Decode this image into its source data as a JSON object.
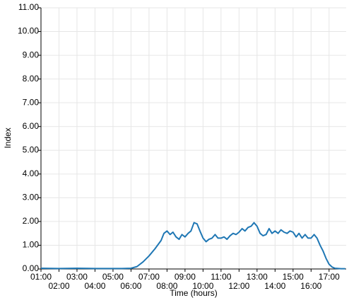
{
  "chart_data": {
    "type": "line",
    "xlabel": "Time (hours)",
    "ylabel": "Index",
    "xlim": [
      1,
      17.95
    ],
    "ylim": [
      0,
      11
    ],
    "xticks": [
      {
        "value": 1,
        "label": "01:00"
      },
      {
        "value": 2,
        "label": "02:00"
      },
      {
        "value": 3,
        "label": "03:00"
      },
      {
        "value": 4,
        "label": "04:00"
      },
      {
        "value": 5,
        "label": "05:00"
      },
      {
        "value": 6,
        "label": "06:00"
      },
      {
        "value": 7,
        "label": "07:00"
      },
      {
        "value": 8,
        "label": "08:00"
      },
      {
        "value": 9,
        "label": "09:00"
      },
      {
        "value": 10,
        "label": "10:00"
      },
      {
        "value": 11,
        "label": "11:00"
      },
      {
        "value": 12,
        "label": "12:00"
      },
      {
        "value": 13,
        "label": "13:00"
      },
      {
        "value": 14,
        "label": "14:00"
      },
      {
        "value": 15,
        "label": "15:00"
      },
      {
        "value": 16,
        "label": "16:00"
      },
      {
        "value": 17,
        "label": "17:00"
      }
    ],
    "yticks": [
      {
        "value": 0,
        "label": "0.00"
      },
      {
        "value": 1,
        "label": "1.00"
      },
      {
        "value": 2,
        "label": "2.00"
      },
      {
        "value": 3,
        "label": "3.00"
      },
      {
        "value": 4,
        "label": "4.00"
      },
      {
        "value": 5,
        "label": "5.00"
      },
      {
        "value": 6,
        "label": "6.00"
      },
      {
        "value": 7,
        "label": "7.00"
      },
      {
        "value": 8,
        "label": "8.00"
      },
      {
        "value": 9,
        "label": "9.00"
      },
      {
        "value": 10,
        "label": "10.00"
      },
      {
        "value": 11,
        "label": "11.00"
      }
    ],
    "grid": true,
    "x": [
      1,
      2,
      3,
      4,
      5,
      5.5,
      6,
      6.33,
      6.67,
      7,
      7.33,
      7.67,
      7.83,
      8,
      8.17,
      8.33,
      8.5,
      8.67,
      8.83,
      9,
      9.17,
      9.33,
      9.5,
      9.67,
      9.83,
      10,
      10.17,
      10.33,
      10.5,
      10.67,
      10.83,
      11,
      11.17,
      11.33,
      11.5,
      11.67,
      11.83,
      12,
      12.17,
      12.33,
      12.5,
      12.67,
      12.83,
      13,
      13.17,
      13.33,
      13.5,
      13.67,
      13.83,
      14,
      14.17,
      14.33,
      14.5,
      14.67,
      14.83,
      15,
      15.17,
      15.33,
      15.5,
      15.67,
      15.83,
      16,
      16.17,
      16.33,
      16.5,
      16.67,
      16.83,
      17,
      17.17,
      17.33,
      17.67,
      17.9
    ],
    "series": [
      {
        "name": "Index",
        "color": "#1f77b4",
        "values": [
          0.03,
          0.02,
          0.03,
          0.02,
          0.02,
          0.02,
          0.03,
          0.1,
          0.3,
          0.55,
          0.85,
          1.2,
          1.5,
          1.6,
          1.45,
          1.55,
          1.35,
          1.25,
          1.45,
          1.35,
          1.5,
          1.6,
          1.95,
          1.9,
          1.6,
          1.3,
          1.15,
          1.25,
          1.3,
          1.45,
          1.3,
          1.3,
          1.35,
          1.25,
          1.4,
          1.5,
          1.45,
          1.55,
          1.7,
          1.6,
          1.75,
          1.8,
          1.95,
          1.8,
          1.5,
          1.4,
          1.45,
          1.7,
          1.5,
          1.6,
          1.5,
          1.65,
          1.55,
          1.5,
          1.6,
          1.55,
          1.35,
          1.5,
          1.3,
          1.45,
          1.3,
          1.3,
          1.45,
          1.3,
          1.0,
          0.75,
          0.45,
          0.2,
          0.08,
          0.03,
          0.01,
          0.01
        ]
      }
    ]
  }
}
